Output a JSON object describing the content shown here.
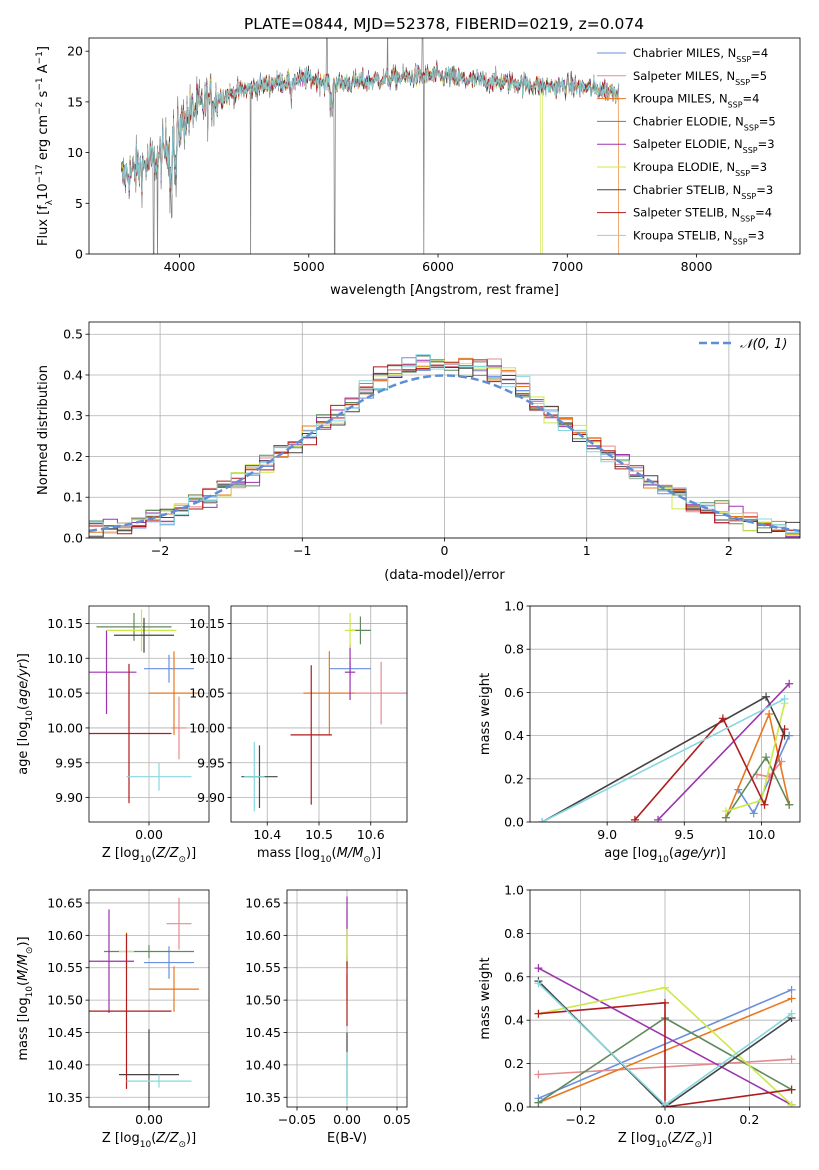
{
  "title": "PLATE=0844, MJD=52378, FIBERID=0219, z=0.074",
  "colors": {
    "series": [
      "#6a8fdc",
      "#e58b8f",
      "#e8781f",
      "#5f8a5e",
      "#9b33ad",
      "#cde84a",
      "#444444",
      "#b01b1b",
      "#86d8df"
    ],
    "gaussian": "#5f8ed4",
    "data_flux": "#808080"
  },
  "chart_data": [
    {
      "type": "line",
      "id": "spectrum",
      "xlabel": "wavelength [Angstrom, rest frame]",
      "ylabel": "Flux [f_λ 10^{-17} erg cm^{-2} s^{-1} A^{-1}]",
      "xlim": [
        3300,
        8800
      ],
      "ylim": [
        0,
        21.3
      ],
      "xticks": [
        4000,
        5000,
        6000,
        7000,
        8000
      ],
      "yticks": [
        0,
        5,
        10,
        15,
        20
      ],
      "legend_position": "upper-right",
      "continuum": {
        "x": [
          3550,
          3700,
          3850,
          3950,
          4050,
          4150,
          4300,
          4450,
          4600,
          4800,
          5000,
          5200,
          5400,
          5600,
          5800,
          6000,
          6200,
          6400,
          6600,
          6800,
          7000,
          7200,
          7400
        ],
        "y": [
          7.5,
          8.5,
          9.5,
          11.5,
          13.5,
          14.5,
          15.5,
          16.0,
          16.5,
          17.0,
          17.3,
          16.8,
          17.0,
          17.3,
          17.5,
          17.6,
          17.2,
          17.0,
          16.9,
          16.5,
          16.6,
          16.3,
          16.0
        ]
      },
      "series": [
        {
          "name": "Chabrier MILES",
          "nssp": "4"
        },
        {
          "name": "Salpeter MILES",
          "nssp": "5"
        },
        {
          "name": "Kroupa MILES",
          "nssp": "4"
        },
        {
          "name": "Chabrier ELODIE",
          "nssp": "5"
        },
        {
          "name": "Salpeter ELODIE",
          "nssp": "3"
        },
        {
          "name": "Kroupa ELODIE",
          "nssp": "3"
        },
        {
          "name": "Chabrier STELIB",
          "nssp": "3"
        },
        {
          "name": "Salpeter STELIB",
          "nssp": "4"
        },
        {
          "name": "Kroupa STELIB",
          "nssp": "3"
        }
      ]
    },
    {
      "type": "step",
      "id": "residuals",
      "xlabel": "(data-model)/error",
      "ylabel": "Normed distribution",
      "xlim": [
        -2.5,
        2.5
      ],
      "ylim": [
        0,
        0.53
      ],
      "xticks": [
        -2,
        -1,
        0,
        1,
        2
      ],
      "yticks": [
        0.0,
        0.1,
        0.2,
        0.3,
        0.4,
        0.5
      ],
      "grid": true,
      "gaussian_label": "𝒩(0, 1)",
      "legend_position": "upper-right"
    },
    {
      "type": "errorbar",
      "id": "age-vs-z",
      "xlabel": "Z [log10(Z/Z⊙)]",
      "ylabel": "age  [log10(age/yr)]",
      "xlim": [
        -0.24,
        0.24
      ],
      "ylim": [
        9.865,
        10.175
      ],
      "xticks": [
        -0.25,
        0.0,
        0.25
      ],
      "yticks": [
        9.9,
        9.95,
        10.0,
        10.05,
        10.1,
        10.15
      ],
      "grid": true,
      "points": [
        {
          "x": 0.08,
          "xerr": 0.1,
          "y": 10.085,
          "yerr": 0.02
        },
        {
          "x": 0.12,
          "xerr": 0.03,
          "y": 10.0,
          "yerr": 0.045
        },
        {
          "x": 0.1,
          "xerr": 0.1,
          "y": 10.05,
          "yerr": 0.06
        },
        {
          "x": -0.06,
          "xerr": 0.15,
          "y": 10.145,
          "yerr": 0.02
        },
        {
          "x": -0.17,
          "xerr": 0.12,
          "y": 10.08,
          "yerr": 0.06
        },
        {
          "x": -0.03,
          "xerr": 0.14,
          "y": 10.14,
          "yerr": 0.03
        },
        {
          "x": -0.02,
          "xerr": 0.12,
          "y": 10.133,
          "yerr": 0.025
        },
        {
          "x": -0.08,
          "xerr": 0.17,
          "y": 9.992,
          "yerr": 0.1
        },
        {
          "x": 0.04,
          "xerr": 0.13,
          "y": 9.93,
          "yerr": 0.02
        }
      ]
    },
    {
      "type": "errorbar",
      "id": "age-vs-mass",
      "xlabel": "mass [log10(M/M⊙)]",
      "ylabel": "",
      "xlim": [
        10.33,
        10.67
      ],
      "ylim": [
        9.865,
        10.175
      ],
      "xticks": [
        10.4,
        10.5,
        10.6
      ],
      "yticks": [
        9.9,
        9.95,
        10.0,
        10.05,
        10.1,
        10.15
      ],
      "grid": true,
      "points": [
        {
          "x": 10.56,
          "xerr": 0.04,
          "y": 10.085,
          "yerr": 0.01
        },
        {
          "x": 10.62,
          "xerr": 0.05,
          "y": 10.05,
          "yerr": 0.045
        },
        {
          "x": 10.52,
          "xerr": 0.05,
          "y": 10.05,
          "yerr": 0.06
        },
        {
          "x": 10.58,
          "xerr": 0.02,
          "y": 10.14,
          "yerr": 0.02
        },
        {
          "x": 10.56,
          "xerr": 0.01,
          "y": 10.08,
          "yerr": 0.04
        },
        {
          "x": 10.56,
          "xerr": 0.01,
          "y": 10.14,
          "yerr": 0.025
        },
        {
          "x": 10.385,
          "xerr": 0.035,
          "y": 9.93,
          "yerr": 0.045
        },
        {
          "x": 10.485,
          "xerr": 0.04,
          "y": 9.99,
          "yerr": 0.1
        },
        {
          "x": 10.375,
          "xerr": 0.02,
          "y": 9.93,
          "yerr": 0.05
        }
      ]
    },
    {
      "type": "line",
      "id": "mass-weight-vs-age",
      "xlabel": "age  [log10(age/yr)]",
      "ylabel": "mass weight",
      "xlim": [
        8.5,
        10.25
      ],
      "ylim": [
        0,
        1.0
      ],
      "xticks": [
        9.0,
        9.5,
        10.0
      ],
      "yticks": [
        0.0,
        0.2,
        0.4,
        0.6,
        0.8,
        1.0
      ],
      "grid": true,
      "series": [
        {
          "x": [
            9.85,
            9.95,
            10.18
          ],
          "y": [
            0.15,
            0.04,
            0.4
          ]
        },
        {
          "x": [
            9.97,
            10.05,
            10.13
          ],
          "y": [
            0.22,
            0.21,
            0.28
          ]
        },
        {
          "x": [
            9.77,
            10.05,
            10.18
          ],
          "y": [
            0.02,
            0.5,
            0.08
          ]
        },
        {
          "x": [
            9.77,
            10.03,
            10.18
          ],
          "y": [
            0.02,
            0.3,
            0.08
          ]
        },
        {
          "x": [
            9.33,
            10.18
          ],
          "y": [
            0.01,
            0.64
          ]
        },
        {
          "x": [
            9.77,
            10.0,
            10.15
          ],
          "y": [
            0.05,
            0.1,
            0.55
          ]
        },
        {
          "x": [
            8.58,
            10.03,
            10.15
          ],
          "y": [
            0.0,
            0.58,
            0.4
          ]
        },
        {
          "x": [
            9.18,
            9.75,
            10.02,
            10.15
          ],
          "y": [
            0.01,
            0.48,
            0.08,
            0.43
          ]
        },
        {
          "x": [
            8.58,
            10.15
          ],
          "y": [
            0.0,
            0.57
          ]
        }
      ]
    },
    {
      "type": "errorbar",
      "id": "mass-vs-z",
      "xlabel": "Z [log10(Z/Z⊙)]",
      "ylabel": "mass [log10(M/M⊙)]",
      "xlim": [
        -0.24,
        0.24
      ],
      "ylim": [
        10.335,
        10.67
      ],
      "xticks": [
        -0.25,
        0.0,
        0.25
      ],
      "yticks": [
        10.35,
        10.4,
        10.45,
        10.5,
        10.55,
        10.6,
        10.65
      ],
      "grid": true,
      "points": [
        {
          "x": 0.08,
          "xerr": 0.1,
          "y": 10.558,
          "yerr": 0.025
        },
        {
          "x": 0.12,
          "xerr": 0.05,
          "y": 10.618,
          "yerr": 0.04
        },
        {
          "x": 0.1,
          "xerr": 0.1,
          "y": 10.517,
          "yerr": 0.035
        },
        {
          "x": 0.0,
          "xerr": 0.18,
          "y": 10.575,
          "yerr": 0.01
        },
        {
          "x": -0.16,
          "xerr": 0.1,
          "y": 10.56,
          "yerr": 0.08
        },
        {
          "x": -0.09,
          "xerr": 0.03,
          "y": 10.575,
          "yerr": 0.03
        },
        {
          "x": 0.0,
          "xerr": 0.12,
          "y": 10.385,
          "yerr": 0.07
        },
        {
          "x": -0.09,
          "xerr": 0.18,
          "y": 10.483,
          "yerr": 0.12
        },
        {
          "x": 0.04,
          "xerr": 0.13,
          "y": 10.375,
          "yerr": 0.01
        }
      ]
    },
    {
      "type": "errorbar",
      "id": "mass-vs-ebv",
      "xlabel": "E(B-V)",
      "ylabel": "",
      "xlim": [
        -0.06,
        0.06
      ],
      "ylim": [
        10.335,
        10.67
      ],
      "xticks": [
        -0.05,
        0.0,
        0.05
      ],
      "yticks": [
        10.35,
        10.4,
        10.45,
        10.5,
        10.55,
        10.6,
        10.65
      ],
      "grid": true,
      "points": [
        {
          "x": 0.0,
          "xerr": 0,
          "y": 10.56,
          "yerr": 0.01
        },
        {
          "x": 0.0,
          "xerr": 0,
          "y": 10.62,
          "yerr": 0.02
        },
        {
          "x": 0.0,
          "xerr": 0,
          "y": 10.52,
          "yerr": 0.02
        },
        {
          "x": 0.0,
          "xerr": 0,
          "y": 10.57,
          "yerr": 0.01
        },
        {
          "x": 0.0,
          "xerr": 0,
          "y": 10.62,
          "yerr": 0.04
        },
        {
          "x": 0.0,
          "xerr": 0,
          "y": 10.58,
          "yerr": 0.03
        },
        {
          "x": 0.0,
          "xerr": 0,
          "y": 10.4,
          "yerr": 0.05
        },
        {
          "x": 0.0,
          "xerr": 0,
          "y": 10.51,
          "yerr": 0.05
        },
        {
          "x": 0.0,
          "xerr": 0,
          "y": 10.38,
          "yerr": 0.04
        }
      ]
    },
    {
      "type": "line",
      "id": "mass-weight-vs-z",
      "xlabel": "Z [log10(Z/Z⊙)]",
      "ylabel": "mass weight",
      "xlim": [
        -0.32,
        0.32
      ],
      "ylim": [
        0,
        1.0
      ],
      "xticks": [
        -0.2,
        0.0,
        0.2
      ],
      "yticks": [
        0.0,
        0.2,
        0.4,
        0.6,
        0.8,
        1.0
      ],
      "grid": true,
      "series": [
        {
          "x": [
            -0.3,
            0.3
          ],
          "y": [
            0.04,
            0.54
          ]
        },
        {
          "x": [
            -0.3,
            0.3
          ],
          "y": [
            0.15,
            0.22
          ]
        },
        {
          "x": [
            -0.3,
            0.3
          ],
          "y": [
            0.02,
            0.5
          ]
        },
        {
          "x": [
            -0.3,
            0.0,
            0.3
          ],
          "y": [
            0.02,
            0.41,
            0.08
          ]
        },
        {
          "x": [
            -0.3,
            0.3
          ],
          "y": [
            0.64,
            0.01
          ]
        },
        {
          "x": [
            -0.3,
            0.0,
            0.3
          ],
          "y": [
            0.43,
            0.55,
            0.01
          ]
        },
        {
          "x": [
            -0.3,
            0.0,
            0.3
          ],
          "y": [
            0.58,
            0.0,
            0.41
          ]
        },
        {
          "x": [
            -0.3,
            0.0,
            0.0,
            0.3
          ],
          "y": [
            0.43,
            0.48,
            0.0,
            0.08
          ]
        },
        {
          "x": [
            -0.3,
            0.0,
            0.3
          ],
          "y": [
            0.57,
            0.01,
            0.43
          ]
        }
      ]
    }
  ]
}
